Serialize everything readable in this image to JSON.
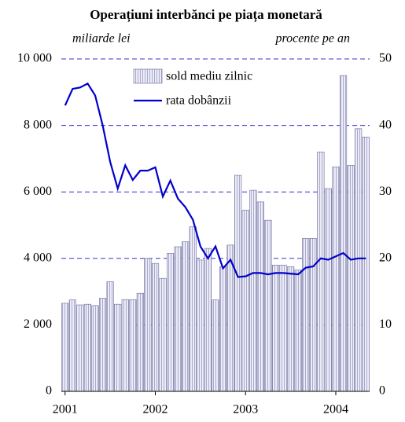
{
  "chart_data": {
    "type": "bar-line",
    "title": "Operațiuni interbănci pe piața monetară",
    "y_label": "miliarde lei",
    "y2_label": "procente pe an",
    "categories": [
      "2001",
      null,
      null,
      null,
      null,
      null,
      null,
      null,
      null,
      null,
      null,
      null,
      "2002",
      null,
      null,
      null,
      null,
      null,
      null,
      null,
      null,
      null,
      null,
      null,
      "2003",
      null,
      null,
      null,
      null,
      null,
      null,
      null,
      null,
      null,
      null,
      null,
      "2004",
      null,
      null,
      null,
      null
    ],
    "series": [
      {
        "name": "sold mediu zilnic",
        "color": "#e2e2f4",
        "values": [
          2650,
          2750,
          2600,
          2620,
          2580,
          2800,
          3300,
          2620,
          2760,
          2760,
          2950,
          4000,
          3850,
          3400,
          4150,
          4350,
          4500,
          4950,
          3950,
          4300,
          2750,
          3750,
          4400,
          6500,
          5450,
          6050,
          5700,
          5150,
          3800,
          3800,
          3750,
          3650,
          4600,
          4600,
          7200,
          6100,
          6750,
          9500,
          6800,
          7900,
          7650
        ]
      },
      {
        "name": "rata dobânzii",
        "color": "#0000cc",
        "axis": "y2",
        "values": [
          43,
          45.5,
          45.7,
          46.3,
          44.5,
          40,
          34.5,
          30.5,
          34,
          31.8,
          33.2,
          33.2,
          33.7,
          29.3,
          31.7,
          29,
          27.7,
          25.8,
          21.8,
          20,
          21.8,
          18.5,
          19.8,
          17.2,
          17.3,
          17.8,
          17.8,
          17.6,
          17.8,
          17.8,
          17.7,
          17.6,
          18.6,
          18.8,
          20,
          19.8,
          20.3,
          20.8,
          19.8,
          20,
          20
        ]
      }
    ],
    "ylim": [
      0,
      10000
    ],
    "yticks": [
      0,
      {
        "value": 2000,
        "label": "2 000"
      },
      {
        "value": 4000,
        "label": "4 000"
      },
      {
        "value": 6000,
        "label": "6 000"
      },
      {
        "value": 8000,
        "label": "8 000"
      },
      {
        "value": 10000,
        "label": "10 000"
      }
    ],
    "y2lim": [
      0,
      50
    ],
    "y2ticks": [
      0,
      10,
      20,
      30,
      40,
      50
    ],
    "grid": true,
    "grid_color": "#3333cc"
  }
}
